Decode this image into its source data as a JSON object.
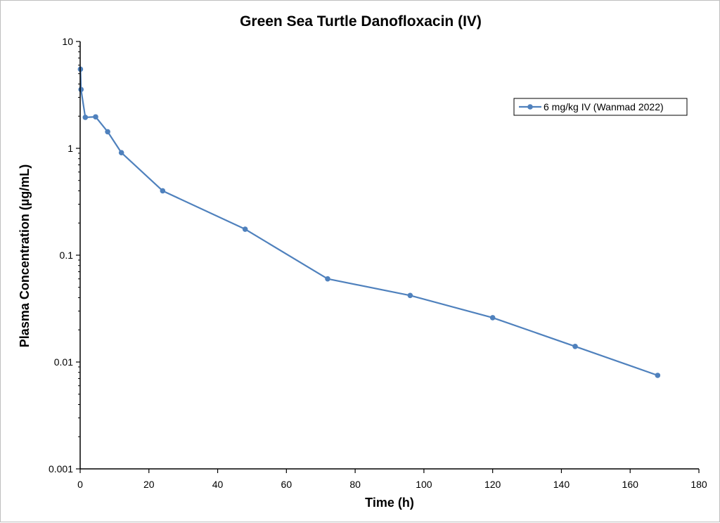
{
  "chart_data": {
    "type": "scatter",
    "title": "Green Sea Turtle Danofloxacin (IV)",
    "xlabel": "Time (h)",
    "ylabel": "Plasma Concentration (µg/mL)",
    "xlim": [
      0,
      180
    ],
    "ylim": [
      0.001,
      10
    ],
    "y_scale": "log",
    "grid": false,
    "legend_position": "top-right",
    "x_ticks": [
      "0",
      "20",
      "40",
      "60",
      "80",
      "100",
      "120",
      "140",
      "160",
      "180"
    ],
    "y_ticks": [
      "0.001",
      "0.01",
      "0.1",
      "1",
      "10"
    ],
    "series": [
      {
        "name": "6 mg/kg IV (Wanmad 2022)",
        "color": "#4F81BD",
        "marker": "circle",
        "x": [
          0.083,
          0.25,
          1.5,
          4.5,
          8,
          12,
          24,
          48,
          72,
          96,
          120,
          144,
          168
        ],
        "y": [
          5.5,
          3.55,
          1.95,
          1.97,
          1.43,
          0.91,
          0.4,
          0.175,
          0.06,
          0.042,
          0.026,
          0.014,
          0.0075
        ]
      }
    ]
  }
}
